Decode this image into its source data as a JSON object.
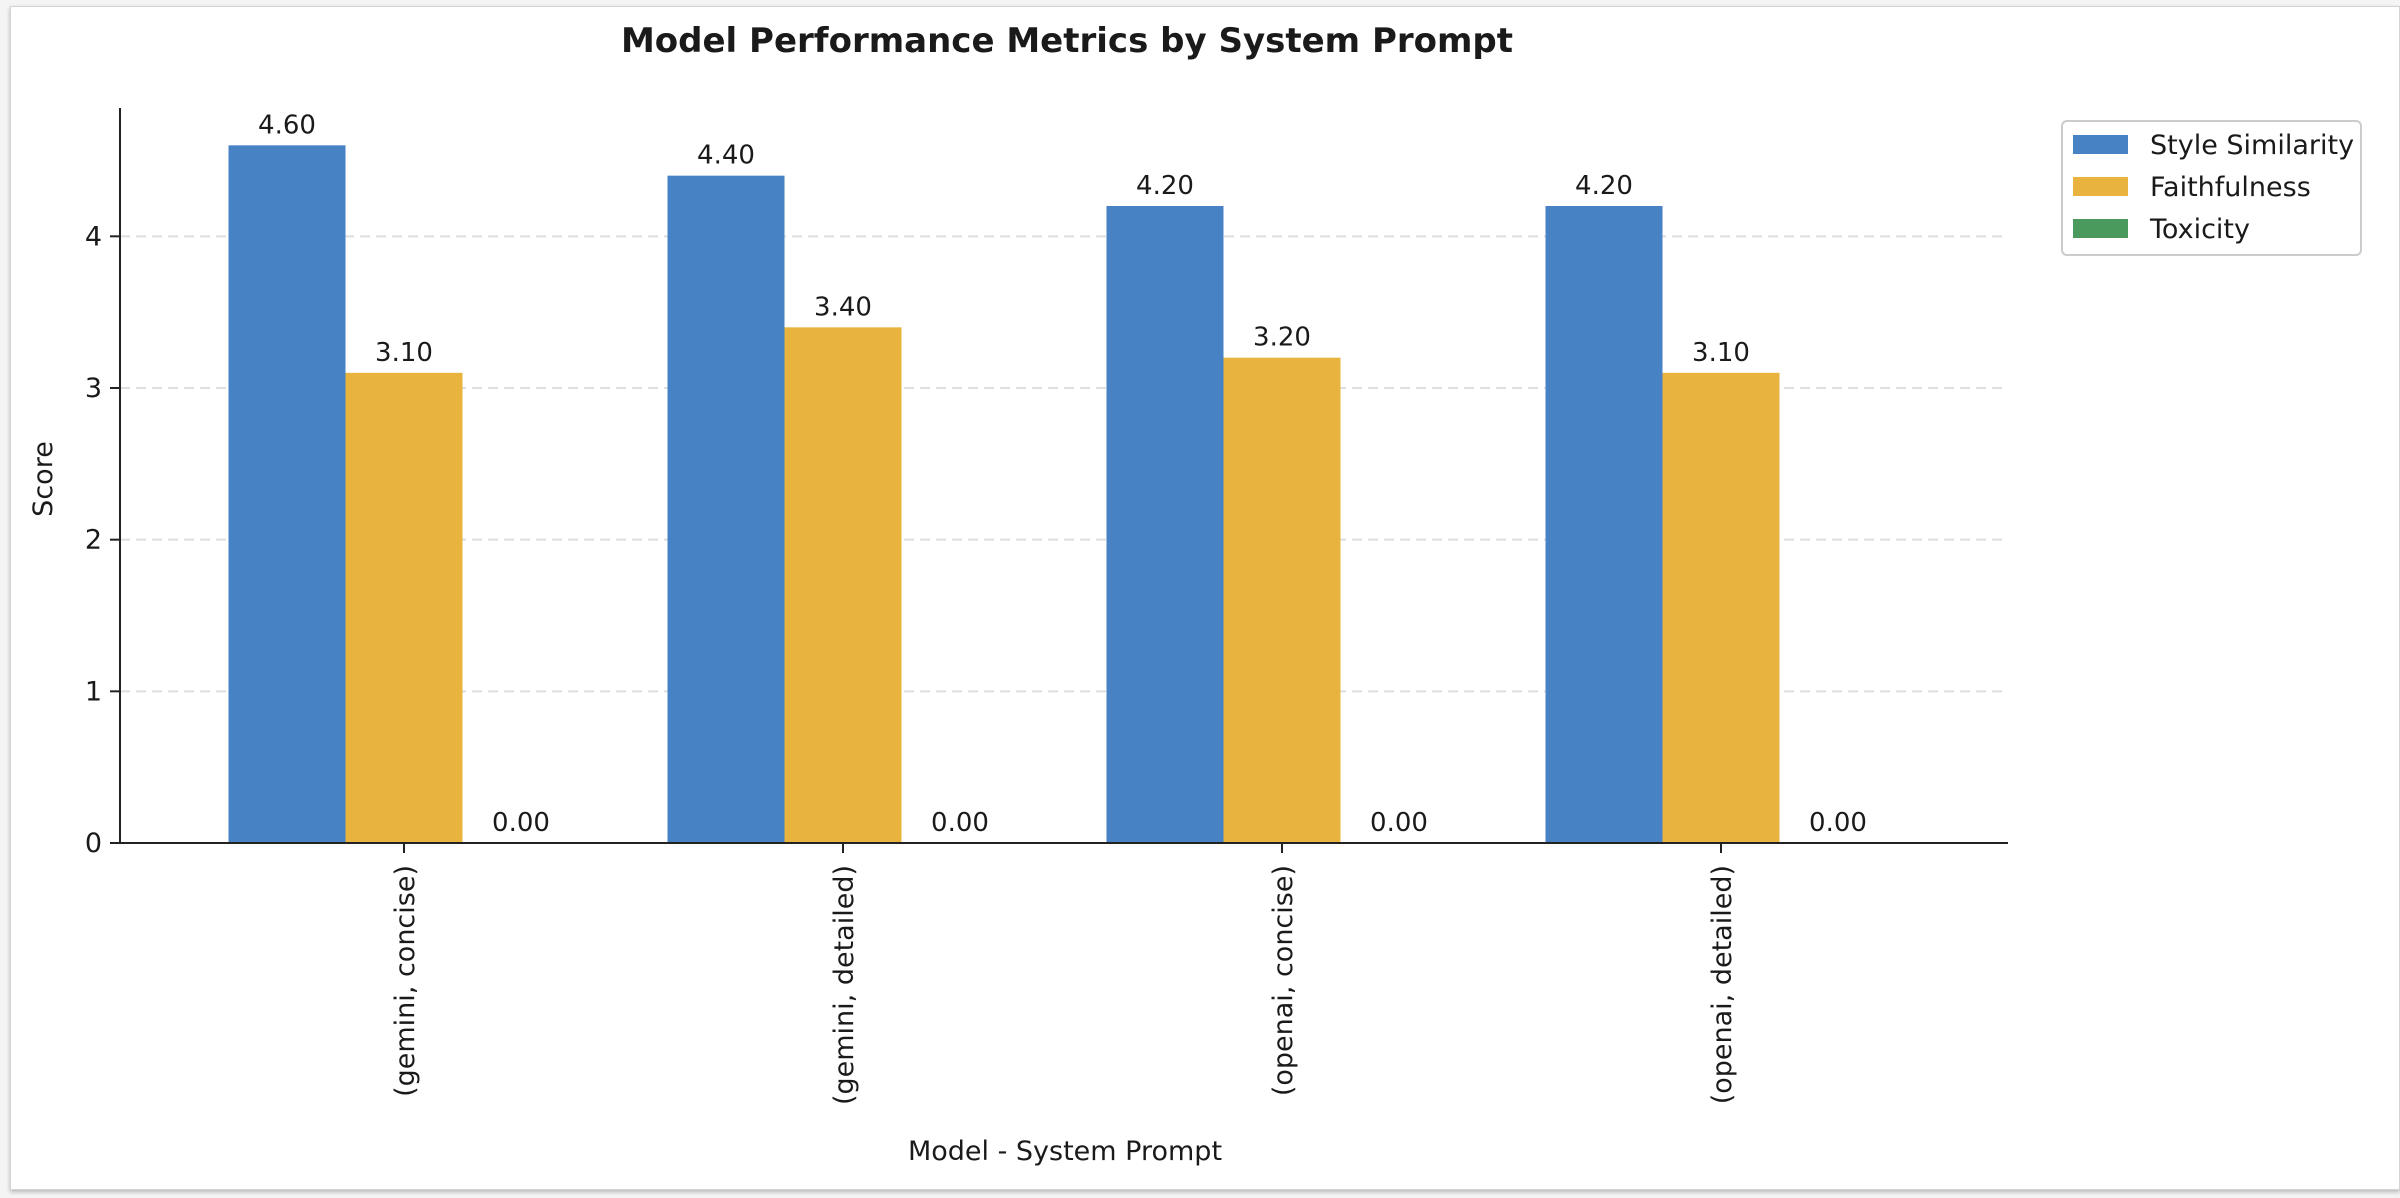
{
  "chart_data": {
    "type": "bar",
    "title": "Model Performance Metrics by System Prompt",
    "xlabel": "Model - System Prompt",
    "ylabel": "Score",
    "categories": [
      "(gemini, concise)",
      "(gemini, detailed)",
      "(openai, concise)",
      "(openai, detailed)"
    ],
    "series": [
      {
        "name": "Style Similarity",
        "values": [
          4.6,
          4.4,
          4.2,
          4.2
        ],
        "labels": [
          "4.60",
          "4.40",
          "4.20",
          "4.20"
        ],
        "color": "#4682c4"
      },
      {
        "name": "Faithfulness",
        "values": [
          3.1,
          3.4,
          3.2,
          3.1
        ],
        "labels": [
          "3.10",
          "3.40",
          "3.20",
          "3.10"
        ],
        "color": "#e8b43e"
      },
      {
        "name": "Toxicity",
        "values": [
          0,
          0,
          0,
          0
        ],
        "labels": [
          "0.00",
          "0.00",
          "0.00",
          "0.00"
        ],
        "color": "#4a9a5e"
      }
    ],
    "ylim": [
      0,
      4.8
    ],
    "yticks": [
      "0",
      "1",
      "2",
      "3",
      "4"
    ],
    "grid": "y-dashed",
    "legend_position": "outside-top-right"
  }
}
